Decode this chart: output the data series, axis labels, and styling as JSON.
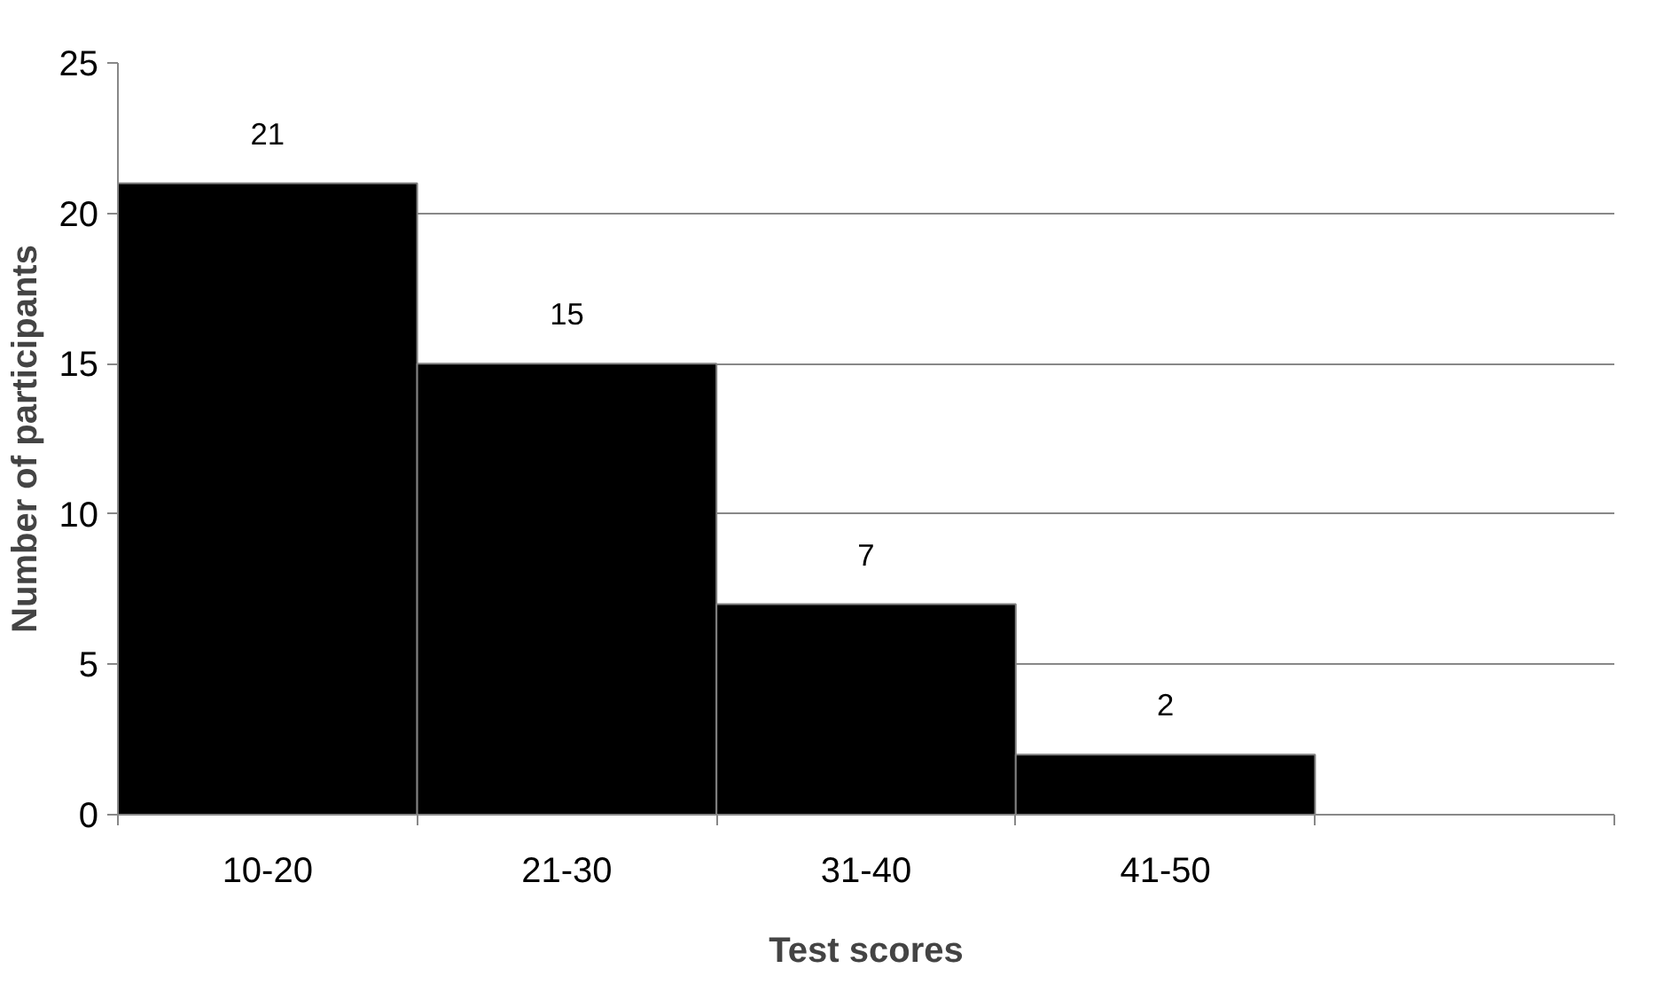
{
  "chart_data": {
    "type": "bar",
    "xlabel": "Test scores",
    "ylabel": "Number of participants",
    "categories": [
      "10-20",
      "21-30",
      "31-40",
      "41-50",
      null
    ],
    "values": [
      21,
      15,
      7,
      2,
      null
    ],
    "color": "#000000",
    "ylim": [
      0,
      25
    ],
    "yticks": [
      0,
      5,
      10,
      15,
      20,
      25
    ],
    "grid": "y",
    "data_labels": true
  }
}
